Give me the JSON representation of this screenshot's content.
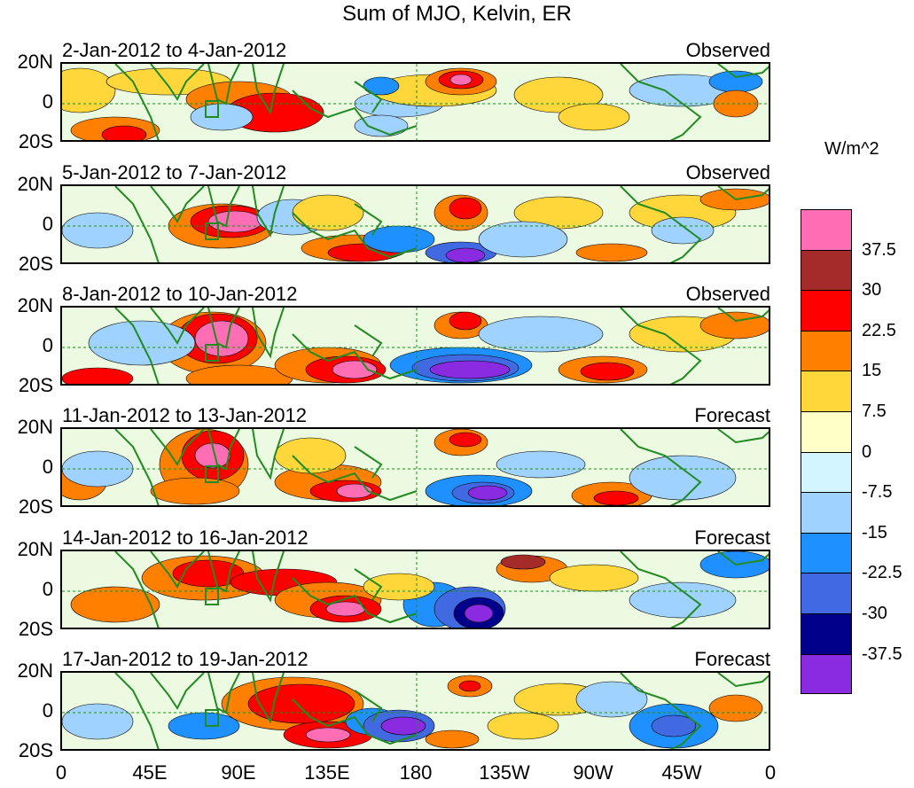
{
  "title": "Sum of MJO, Kelvin, ER",
  "unit": "W/m^2",
  "y_ticks": [
    "20N",
    "0",
    "20S"
  ],
  "x_ticks": [
    "0",
    "45E",
    "90E",
    "135E",
    "180",
    "135W",
    "90W",
    "45W",
    "0"
  ],
  "panels": [
    {
      "date": "2-Jan-2012 to 4-Jan-2012",
      "status": "Observed"
    },
    {
      "date": "5-Jan-2012 to 7-Jan-2012",
      "status": "Observed"
    },
    {
      "date": "8-Jan-2012 to 10-Jan-2012",
      "status": "Observed"
    },
    {
      "date": "11-Jan-2012 to 13-Jan-2012",
      "status": "Forecast"
    },
    {
      "date": "14-Jan-2012 to 16-Jan-2012",
      "status": "Forecast"
    },
    {
      "date": "17-Jan-2012 to 19-Jan-2012",
      "status": "Forecast"
    }
  ],
  "colorbar": {
    "colors": [
      "#ff6eb4",
      "#a52a2a",
      "#ff0000",
      "#ff7f00",
      "#ffd73a",
      "#ffffc8",
      "#d2f5ff",
      "#a0d2ff",
      "#1e90ff",
      "#4169e1",
      "#00008b",
      "#8a2be2"
    ],
    "labels": [
      "37.5",
      "30",
      "22.5",
      "15",
      "7.5",
      "0",
      "-7.5",
      "-15",
      "-22.5",
      "-30",
      "-37.5"
    ]
  },
  "colors": {
    "coast": "#228b22",
    "equator": "#228b22"
  }
}
